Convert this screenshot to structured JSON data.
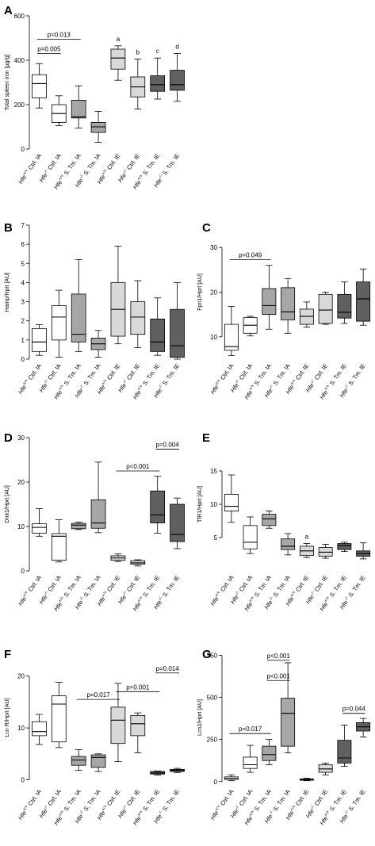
{
  "colors": {
    "Hfe+/+ Ctrl. IA": "#ffffff",
    "Hfe-/- Ctrl. IA": "#ffffff",
    "Hfe+/+ S. Tm. IA": "#a6a6a6",
    "Hfe-/- S. Tm. IA": "#a6a6a6",
    "Hfe+/+ Ctrl. IE": "#d9d9d9",
    "Hfe-/- Ctrl. IE": "#d9d9d9",
    "Hfe+/+ S. Tm. IE": "#606060",
    "Hfe-/- S. Tm. IE": "#606060"
  },
  "chart_data": [
    {
      "panel": "A",
      "type": "boxplot",
      "ylabel": "Total spleen iron [µg/g]",
      "ylim": [
        0,
        600
      ],
      "yticks": [
        0,
        200,
        400,
        600
      ],
      "categories": [
        "Hfe+/+ Ctrl. IA",
        "Hfe-/- Ctrl. IA",
        "Hfe+/+ S. Tm. IA",
        "Hfe-/- S. Tm. IA",
        "Hfe+/+ Ctrl. IE",
        "Hfe-/- Ctrl. IE",
        "Hfe+/+ S. Tm. IE",
        "Hfe-/- S. Tm. IE"
      ],
      "boxes": [
        {
          "min": 185,
          "q1": 230,
          "median": 295,
          "q3": 335,
          "max": 385
        },
        {
          "min": 105,
          "q1": 120,
          "median": 160,
          "q3": 200,
          "max": 240
        },
        {
          "min": 95,
          "q1": 140,
          "median": 145,
          "q3": 220,
          "max": 285
        },
        {
          "min": 30,
          "q1": 75,
          "median": 100,
          "q3": 120,
          "max": 170
        },
        {
          "min": 310,
          "q1": 360,
          "median": 410,
          "q3": 450,
          "max": 465
        },
        {
          "min": 180,
          "q1": 235,
          "median": 280,
          "q3": 325,
          "max": 405
        },
        {
          "min": 225,
          "q1": 260,
          "median": 290,
          "q3": 330,
          "max": 410
        },
        {
          "min": 215,
          "q1": 265,
          "median": 290,
          "q3": 355,
          "max": 430
        }
      ],
      "brackets": [
        {
          "from": 0,
          "to": 1,
          "y": 430,
          "label": "p=0.005"
        },
        {
          "from": 0,
          "to": 2,
          "y": 495,
          "label": "p=0.013"
        }
      ],
      "letters": [
        {
          "index": 4,
          "text": "a"
        },
        {
          "index": 5,
          "text": "b"
        },
        {
          "index": 6,
          "text": "c"
        },
        {
          "index": 7,
          "text": "d"
        }
      ]
    },
    {
      "panel": "B",
      "type": "boxplot",
      "ylabel": "Hamp/Hprt [AU]",
      "ylim": [
        0,
        7
      ],
      "yticks": [
        0,
        1,
        2,
        3,
        4,
        5,
        6,
        7
      ],
      "categories": [
        "Hfe+/+ Ctrl. IA",
        "Hfe-/- Ctrl. IA",
        "Hfe+/+ S. Tm. IA",
        "Hfe-/- S. Tm. IA",
        "Hfe+/+ Ctrl. IE",
        "Hfe-/- Ctrl. IE",
        "Hfe+/+ S. Tm. IE",
        "Hfe-/- S. Tm. IE"
      ],
      "boxes": [
        {
          "min": 0.2,
          "q1": 0.4,
          "median": 0.9,
          "q3": 1.6,
          "max": 1.8
        },
        {
          "min": 0.1,
          "q1": 1.0,
          "median": 2.2,
          "q3": 2.8,
          "max": 3.6
        },
        {
          "min": 0.4,
          "q1": 0.9,
          "median": 1.3,
          "q3": 3.4,
          "max": 5.2
        },
        {
          "min": 0.1,
          "q1": 0.5,
          "median": 0.8,
          "q3": 1.1,
          "max": 1.5
        },
        {
          "min": 0.8,
          "q1": 1.2,
          "median": 2.6,
          "q3": 4.0,
          "max": 5.9
        },
        {
          "min": 0.6,
          "q1": 1.3,
          "median": 2.2,
          "q3": 3.0,
          "max": 4.1
        },
        {
          "min": 0.2,
          "q1": 0.4,
          "median": 0.9,
          "q3": 2.1,
          "max": 3.2
        },
        {
          "min": 0.0,
          "q1": 0.1,
          "median": 0.7,
          "q3": 2.6,
          "max": 4.0
        }
      ],
      "brackets": [],
      "letters": []
    },
    {
      "panel": "C",
      "type": "boxplot",
      "ylabel": "Fpn1/Hprt [AU]",
      "ylim": [
        5,
        35
      ],
      "yticks": [
        10,
        20,
        30
      ],
      "categories": [
        "Hfe+/+ Ctrl. IA",
        "Hfe-/- Ctrl. IA",
        "Hfe+/+ S. Tm. IA",
        "Hfe-/- S. Tm. IA",
        "Hfe+/+ Ctrl. IE",
        "Hfe-/- Ctrl. IE",
        "Hfe+/+ S. Tm. IE",
        "Hfe-/- S. Tm. IE"
      ],
      "boxes": [
        {
          "min": 5.8,
          "q1": 7.0,
          "median": 7.8,
          "q3": 12.8,
          "max": 16.8
        },
        {
          "min": 10.2,
          "q1": 10.8,
          "median": 12.6,
          "q3": 14.3,
          "max": 14.6
        },
        {
          "min": 11.7,
          "q1": 15.0,
          "median": 17.0,
          "q3": 20.8,
          "max": 26.0
        },
        {
          "min": 10.8,
          "q1": 13.8,
          "median": 15.6,
          "q3": 21.0,
          "max": 23.0
        },
        {
          "min": 12.2,
          "q1": 12.8,
          "median": 14.6,
          "q3": 16.2,
          "max": 17.8
        },
        {
          "min": 12.8,
          "q1": 13.0,
          "median": 16.0,
          "q3": 19.5,
          "max": 20.0
        },
        {
          "min": 13.0,
          "q1": 14.2,
          "median": 15.5,
          "q3": 19.5,
          "max": 22.3
        },
        {
          "min": 12.6,
          "q1": 13.5,
          "median": 18.5,
          "q3": 22.3,
          "max": 25.2
        }
      ],
      "brackets": [
        {
          "from": 0,
          "to": 2,
          "y": 27.3,
          "label": "p=0.049"
        }
      ],
      "letters": []
    },
    {
      "panel": "D",
      "type": "boxplot",
      "ylabel": "Dmt1/Hprt [AU]",
      "ylim": [
        0,
        30
      ],
      "yticks": [
        0,
        10,
        20,
        30
      ],
      "categories": [
        "Hfe+/+ Ctrl. IA",
        "Hfe-/- Ctrl. IA",
        "Hfe+/+ S. Tm. IA",
        "Hfe-/- S. Tm. IA",
        "Hfe+/+ Ctrl. IE",
        "Hfe-/- Ctrl. IE",
        "Hfe+/+ S. Tm. IE",
        "Hfe-/- S. Tm. IE"
      ],
      "boxes": [
        {
          "min": 7.8,
          "q1": 8.5,
          "median": 9.8,
          "q3": 10.6,
          "max": 14.0
        },
        {
          "min": 2.0,
          "q1": 2.4,
          "median": 7.8,
          "q3": 8.4,
          "max": 11.5
        },
        {
          "min": 9.3,
          "q1": 9.5,
          "median": 10.3,
          "q3": 10.7,
          "max": 11.0
        },
        {
          "min": 8.6,
          "q1": 9.6,
          "median": 10.8,
          "q3": 16.0,
          "max": 24.5
        },
        {
          "min": 2.1,
          "q1": 2.4,
          "median": 2.9,
          "q3": 3.4,
          "max": 3.8
        },
        {
          "min": 1.1,
          "q1": 1.5,
          "median": 1.8,
          "q3": 2.3,
          "max": 2.5
        },
        {
          "min": 8.5,
          "q1": 10.8,
          "median": 12.6,
          "q3": 18.0,
          "max": 21.3
        },
        {
          "min": 5.0,
          "q1": 6.6,
          "median": 8.2,
          "q3": 15.0,
          "max": 16.4
        }
      ],
      "brackets": [
        {
          "from": 4,
          "to": 6,
          "y": 22.5,
          "label": "p<0.001"
        },
        {
          "from": 6,
          "to": 7,
          "y": 27.4,
          "label": "p=0.004"
        }
      ],
      "letters": []
    },
    {
      "panel": "E",
      "type": "boxplot",
      "ylabel": "TfR1/Hprt [AU]",
      "ylim": [
        0,
        20
      ],
      "yticks": [
        5,
        10,
        15
      ],
      "categories": [
        "Hfe+/+ Ctrl. IA",
        "Hfe-/- Ctrl. IA",
        "Hfe+/+ S. Tm. IA",
        "Hfe-/- S. Tm. IA",
        "Hfe+/+ Ctrl. IE",
        "Hfe-/- Ctrl. IE",
        "Hfe+/+ S. Tm. IE",
        "Hfe-/- S. Tm. IE"
      ],
      "boxes": [
        {
          "min": 7.3,
          "q1": 9.0,
          "median": 9.7,
          "q3": 11.5,
          "max": 14.4
        },
        {
          "min": 2.6,
          "q1": 3.3,
          "median": 4.3,
          "q3": 6.8,
          "max": 8.1
        },
        {
          "min": 6.4,
          "q1": 6.8,
          "median": 7.8,
          "q3": 8.5,
          "max": 9.0
        },
        {
          "min": 2.4,
          "q1": 3.2,
          "median": 3.7,
          "q3": 4.8,
          "max": 5.6
        },
        {
          "min": 2.0,
          "q1": 2.3,
          "median": 3.0,
          "q3": 3.7,
          "max": 4.1
        },
        {
          "min": 1.9,
          "q1": 2.2,
          "median": 2.8,
          "q3": 3.5,
          "max": 4.0
        },
        {
          "min": 2.9,
          "q1": 3.2,
          "median": 3.8,
          "q3": 4.1,
          "max": 4.3
        },
        {
          "min": 1.8,
          "q1": 2.2,
          "median": 2.6,
          "q3": 3.0,
          "max": 4.2
        }
      ],
      "brackets": [],
      "letters": [
        {
          "index": 4,
          "text": "a"
        }
      ]
    },
    {
      "panel": "F",
      "type": "boxplot",
      "ylabel": "Lcn R/Hprt [AU]",
      "ylim": [
        -1,
        25
      ],
      "yticks": [
        0,
        10,
        20
      ],
      "categories": [
        "Hfe+/+ Ctrl. IA",
        "Hfe-/- Ctrl. IA",
        "Hfe+/+ S. Tm. IA",
        "Hfe-/- S. Tm. IA",
        "Hfe+/+ Ctrl. IE",
        "Hfe-/- Ctrl. IE",
        "Hfe+/+ S. Tm. IE",
        "Hfe-/- S. Tm. IE"
      ],
      "boxes": [
        {
          "min": 6.8,
          "q1": 8.5,
          "median": 9.3,
          "q3": 11.2,
          "max": 12.6
        },
        {
          "min": 6.2,
          "q1": 7.3,
          "median": 14.6,
          "q3": 16.2,
          "max": 18.8
        },
        {
          "min": 1.8,
          "q1": 2.8,
          "median": 3.8,
          "q3": 4.5,
          "max": 5.8
        },
        {
          "min": 1.6,
          "q1": 2.4,
          "median": 4.3,
          "q3": 4.8,
          "max": 5.0
        },
        {
          "min": 3.5,
          "q1": 7.0,
          "median": 11.5,
          "q3": 14.0,
          "max": 18.6
        },
        {
          "min": 5.2,
          "q1": 8.5,
          "median": 10.8,
          "q3": 12.4,
          "max": 12.9
        },
        {
          "min": 0.9,
          "q1": 1.1,
          "median": 1.3,
          "q3": 1.6,
          "max": 1.7
        },
        {
          "min": 1.4,
          "q1": 1.6,
          "median": 1.8,
          "q3": 2.0,
          "max": 2.2
        }
      ],
      "brackets": [
        {
          "from": 2,
          "to": 4,
          "y": 15.5,
          "label": "p=0.017"
        },
        {
          "from": 4,
          "to": 6,
          "y": 17.0,
          "label": "p=0.001"
        },
        {
          "from": 6,
          "to": 7,
          "y": 20.6,
          "label": "p=0.014"
        }
      ],
      "letters": []
    },
    {
      "panel": "G",
      "type": "boxplot",
      "ylabel": "Lcn2/Hprt [AU]",
      "ylim": [
        -20,
        780
      ],
      "yticks": [
        0,
        250,
        500,
        750
      ],
      "categories": [
        "Hfe+/+ Ctrl. IA",
        "Hfe-/- Ctrl. IA",
        "Hfe+/+ S. Tm. IA",
        "Hfe-/- S. Tm. IA",
        "Hfe+/+ Ctrl. IE",
        "Hfe-/- Ctrl. IE",
        "Hfe+/+ S. Tm. IE",
        "Hfe-/- S. Tm. IE"
      ],
      "boxes": [
        {
          "min": 5,
          "q1": 12,
          "median": 20,
          "q3": 28,
          "max": 40
        },
        {
          "min": 55,
          "q1": 78,
          "median": 100,
          "q3": 145,
          "max": 215
        },
        {
          "min": 100,
          "q1": 125,
          "median": 160,
          "q3": 210,
          "max": 250
        },
        {
          "min": 170,
          "q1": 210,
          "median": 405,
          "q3": 495,
          "max": 705
        },
        {
          "min": 5,
          "q1": 8,
          "median": 12,
          "q3": 16,
          "max": 20
        },
        {
          "min": 40,
          "q1": 55,
          "median": 75,
          "q3": 100,
          "max": 110
        },
        {
          "min": 90,
          "q1": 110,
          "median": 140,
          "q3": 245,
          "max": 335
        },
        {
          "min": 265,
          "q1": 300,
          "median": 325,
          "q3": 350,
          "max": 375
        }
      ],
      "brackets": [
        {
          "from": 0,
          "to": 2,
          "y": 285,
          "label": "p=0.017"
        },
        {
          "from": 2,
          "to": 3,
          "y": 600,
          "label": "p<0.001"
        },
        {
          "from": 2,
          "to": 3,
          "y": 720,
          "label": "p<0.001"
        },
        {
          "from": 6,
          "to": 7,
          "y": 405,
          "label": "p=0.044"
        }
      ],
      "letters": []
    }
  ]
}
